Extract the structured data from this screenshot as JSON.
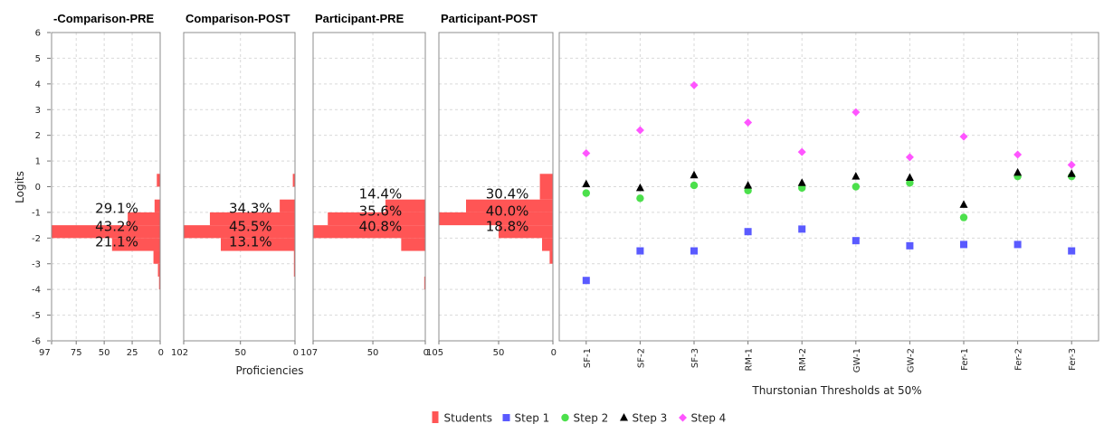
{
  "chart_data": {
    "type": "bar",
    "y_axis": {
      "label": "Logits",
      "ylim": [
        -6,
        6
      ],
      "ticks": [
        6,
        5,
        4,
        3,
        2,
        1,
        0,
        -1,
        -2,
        -3,
        -4,
        -5,
        -6
      ]
    },
    "x_axis_label": "Proficiencies",
    "histogram_bins": [
      0.5,
      0,
      -0.5,
      -1,
      -1.5,
      -2,
      -2.5,
      -3,
      -3.5
    ],
    "panels": [
      {
        "title": "-Comparison-PRE",
        "max": 97,
        "ticks": [
          97,
          75,
          50,
          25,
          0
        ],
        "bars": [
          3,
          0,
          5,
          29,
          97,
          43,
          6,
          2,
          1
        ],
        "labels": [
          {
            "text": "29.1%",
            "y": -0.85
          },
          {
            "text": "43.2%",
            "y": -1.55
          },
          {
            "text": "21.1%",
            "y": -2.15
          }
        ]
      },
      {
        "title": "Comparison-POST",
        "max": 102,
        "ticks": [
          102,
          50,
          0
        ],
        "bars": [
          2,
          0,
          14,
          78,
          102,
          68,
          1,
          1,
          0
        ],
        "labels": [
          {
            "text": "34.3%",
            "y": -0.85
          },
          {
            "text": "45.5%",
            "y": -1.55
          },
          {
            "text": "13.1%",
            "y": -2.15
          }
        ]
      },
      {
        "title": "Participant-PRE",
        "max": 107,
        "ticks": [
          107,
          50,
          0
        ],
        "bars": [
          0,
          0,
          38,
          93,
          107,
          23,
          0,
          0,
          1
        ],
        "labels": [
          {
            "text": "14.4%",
            "y": -0.28
          },
          {
            "text": "35.6%",
            "y": -0.95
          },
          {
            "text": "40.8%",
            "y": -1.55
          }
        ]
      },
      {
        "title": "Participant-POST",
        "max": 105,
        "ticks": [
          105,
          50,
          0
        ],
        "bars": [
          12,
          12,
          80,
          105,
          50,
          10,
          3,
          0,
          0
        ],
        "labels": [
          {
            "text": "30.4%",
            "y": -0.28
          },
          {
            "text": "40.0%",
            "y": -0.95
          },
          {
            "text": "18.8%",
            "y": -1.55
          }
        ]
      }
    ],
    "scatter": {
      "xlabel": "Thurstonian Thresholds at 50%",
      "categories": [
        "SF-1",
        "SF-2",
        "SF-3",
        "RM-1",
        "RM-2",
        "GW-1",
        "GW-2",
        "Fer-1",
        "Fer-2",
        "Fer-3"
      ],
      "series": [
        {
          "name": "Step 1",
          "marker": "square",
          "color": "#5a5aff",
          "values": [
            -3.65,
            -2.5,
            -2.5,
            -1.75,
            -1.65,
            -2.1,
            -2.3,
            -2.25,
            -2.25,
            -2.5
          ]
        },
        {
          "name": "Step 2",
          "marker": "circle",
          "color": "#4ce04c",
          "values": [
            -0.25,
            -0.45,
            0.05,
            -0.15,
            -0.05,
            0.0,
            0.15,
            -1.2,
            0.4,
            0.4
          ]
        },
        {
          "name": "Step 3",
          "marker": "triangle",
          "color": "#000000",
          "values": [
            0.1,
            -0.05,
            0.45,
            0.05,
            0.15,
            0.4,
            0.35,
            -0.7,
            0.55,
            0.5
          ]
        },
        {
          "name": "Step 4",
          "marker": "diamond",
          "color": "#ff55ff",
          "values": [
            1.3,
            2.2,
            3.95,
            2.5,
            1.35,
            2.9,
            1.15,
            1.95,
            1.25,
            0.85
          ]
        }
      ]
    },
    "legend": {
      "position": "bottom",
      "items": [
        {
          "name": "Students",
          "marker": "bar",
          "color": "#ff5555"
        },
        {
          "name": "Step 1",
          "marker": "square",
          "color": "#5a5aff"
        },
        {
          "name": "Step 2",
          "marker": "circle",
          "color": "#4ce04c"
        },
        {
          "name": "Step 3",
          "marker": "triangle",
          "color": "#000000"
        },
        {
          "name": "Step 4",
          "marker": "diamond",
          "color": "#ff55ff"
        }
      ]
    },
    "grid": true,
    "bar_color": "#ff5555"
  }
}
